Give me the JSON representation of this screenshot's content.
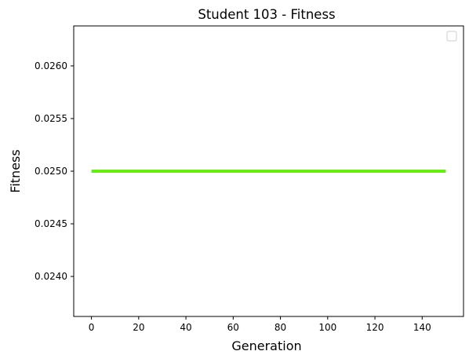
{
  "chart_data": {
    "type": "line",
    "title": "Student 103 - Fitness",
    "xlabel": "Generation",
    "ylabel": "Fitness",
    "xlim": [
      -7.5,
      157.5
    ],
    "ylim": [
      0.02362,
      0.02638
    ],
    "xticks": [
      0,
      20,
      40,
      60,
      80,
      100,
      120,
      140
    ],
    "xtick_labels": [
      "0",
      "20",
      "40",
      "60",
      "80",
      "100",
      "120",
      "140"
    ],
    "yticks": [
      0.024,
      0.0245,
      0.025,
      0.0255,
      0.026
    ],
    "ytick_labels": [
      "0.0240",
      "0.0245",
      "0.0250",
      "0.0255",
      "0.0260"
    ],
    "grid": false,
    "legend": {
      "position": "top-right",
      "entries": []
    },
    "series": [
      {
        "name": "",
        "color": "#66ee11",
        "x": [
          0,
          150
        ],
        "y": [
          0.025,
          0.025
        ]
      }
    ]
  }
}
